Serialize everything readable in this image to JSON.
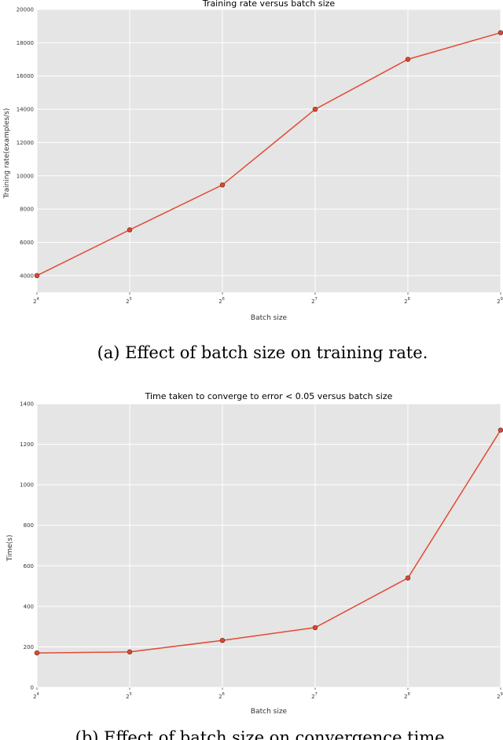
{
  "chart_data": [
    {
      "type": "line",
      "title": "Training rate versus batch size",
      "xlabel": "Batch size",
      "ylabel": "Training rate(examples/s)",
      "x_scale": "log2",
      "x": [
        16,
        32,
        64,
        128,
        256,
        512
      ],
      "x_tick_labels": [
        {
          "base": "2",
          "exp": "4"
        },
        {
          "base": "2",
          "exp": "5"
        },
        {
          "base": "2",
          "exp": "6"
        },
        {
          "base": "2",
          "exp": "7"
        },
        {
          "base": "2",
          "exp": "8"
        },
        {
          "base": "2",
          "exp": "9"
        }
      ],
      "y_ticks": [
        "4000",
        "6000",
        "8000",
        "10000",
        "12000",
        "14000",
        "16000",
        "18000",
        "20000"
      ],
      "ylim": [
        3000,
        20000
      ],
      "series": [
        {
          "values": [
            4000,
            6750,
            9450,
            14000,
            17000,
            18600
          ],
          "color": "#e24a33"
        }
      ],
      "grid": true,
      "background": "#e5e5e5",
      "caption": "(a) Effect of batch size on training rate."
    },
    {
      "type": "line",
      "title": "Time taken to converge to error < 0.05 versus batch size",
      "xlabel": "Batch size",
      "ylabel": "Time(s)",
      "x_scale": "log2",
      "x": [
        16,
        32,
        64,
        128,
        256,
        512
      ],
      "x_tick_labels": [
        {
          "base": "2",
          "exp": "4"
        },
        {
          "base": "2",
          "exp": "5"
        },
        {
          "base": "2",
          "exp": "6"
        },
        {
          "base": "2",
          "exp": "7"
        },
        {
          "base": "2",
          "exp": "8"
        },
        {
          "base": "2",
          "exp": "9"
        }
      ],
      "y_ticks": [
        "0",
        "200",
        "400",
        "600",
        "800",
        "1000",
        "1200",
        "1400"
      ],
      "ylim": [
        0,
        1400
      ],
      "series": [
        {
          "values": [
            170,
            175,
            232,
            295,
            540,
            1270
          ],
          "color": "#e24a33"
        }
      ],
      "grid": true,
      "background": "#e5e5e5",
      "caption": "(b) Effect of batch size on convergence time."
    }
  ]
}
